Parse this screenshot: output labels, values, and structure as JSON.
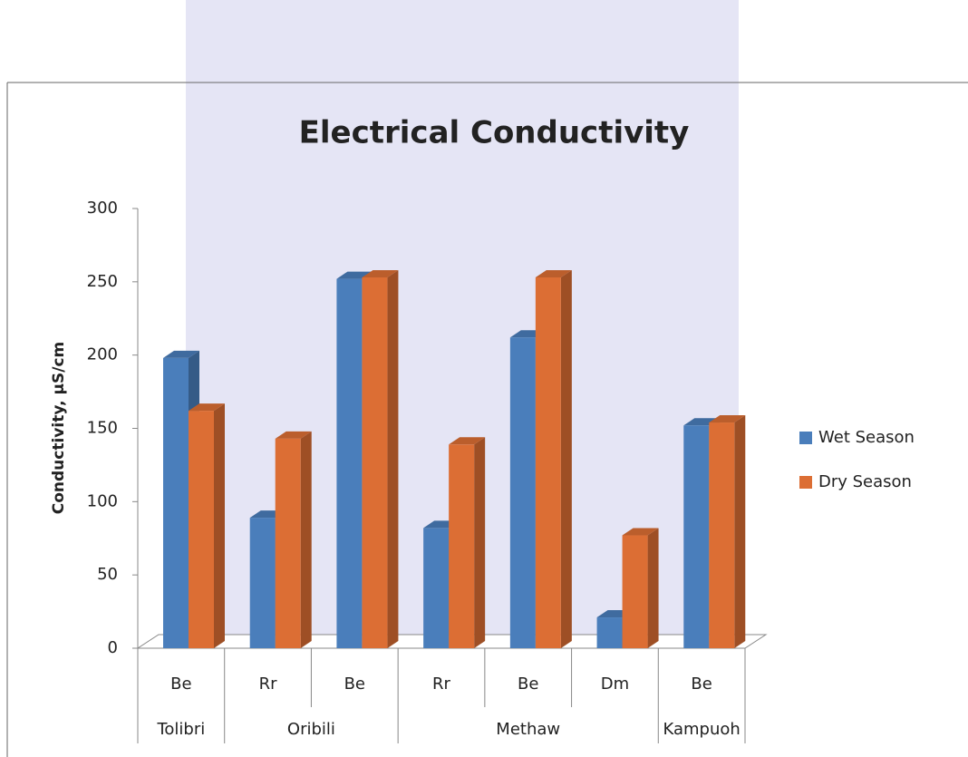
{
  "chart_data": {
    "type": "bar3d",
    "title": "Electrical Conductivity",
    "y_label": "Conductivity, µS/cm",
    "categories": [
      "Be",
      "Rr",
      "Be",
      "Rr",
      "Be",
      "Dm",
      "Be"
    ],
    "groups": [
      "Tolibri",
      "Oribili",
      null,
      "Methaw",
      null,
      null,
      "Kampuoh"
    ],
    "series": [
      {
        "name": "Wet Season",
        "color": "#4a7ebb",
        "values": [
          198,
          89,
          252,
          82,
          212,
          21,
          152
        ]
      },
      {
        "name": "Dry Season",
        "color": "#dc6e34",
        "values": [
          162,
          143,
          253,
          139,
          253,
          77,
          154
        ]
      }
    ],
    "ylim": [
      0,
      300
    ],
    "yticks": [
      0,
      50,
      100,
      150,
      200,
      250,
      300
    ],
    "legend": "right"
  }
}
